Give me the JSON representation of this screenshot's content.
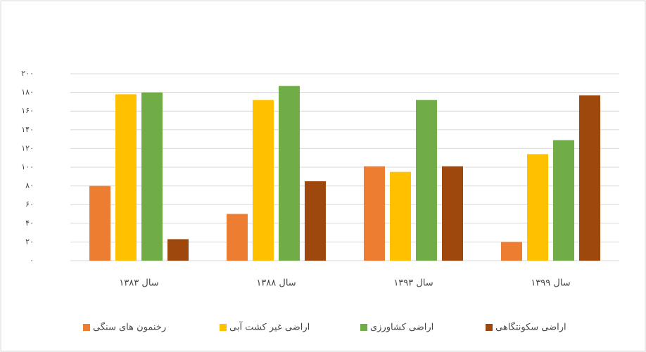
{
  "chart_data": {
    "type": "bar",
    "categories": [
      "سال ۱۳۸۳",
      "سال ۱۳۸۸",
      "سال ۱۳۹۳",
      "سال ۱۳۹۹"
    ],
    "series": [
      {
        "name": "رخنمون های سنگی",
        "color": "#ED7D31",
        "values": [
          80,
          50,
          101,
          20
        ]
      },
      {
        "name": "اراضی غیر کشت آبی",
        "color": "#FFC000",
        "values": [
          178,
          172,
          95,
          114
        ]
      },
      {
        "name": "اراضی کشاورزی",
        "color": "#70AD47",
        "values": [
          180,
          187,
          172,
          129
        ]
      },
      {
        "name": "اراضی سکونتگاهی",
        "color": "#9E480E",
        "values": [
          23,
          85,
          101,
          177
        ]
      }
    ],
    "ylim": [
      0,
      200
    ],
    "yticks": [
      {
        "value": 0,
        "label": "۰"
      },
      {
        "value": 20,
        "label": "۲۰"
      },
      {
        "value": 40,
        "label": "۴۰"
      },
      {
        "value": 60,
        "label": "۶۰"
      },
      {
        "value": 80,
        "label": "۸۰"
      },
      {
        "value": 100,
        "label": "۱۰۰"
      },
      {
        "value": 120,
        "label": "۱۲۰"
      },
      {
        "value": 140,
        "label": "۱۴۰"
      },
      {
        "value": 160,
        "label": "۱۶۰"
      },
      {
        "value": 180,
        "label": "۱۸۰"
      },
      {
        "value": 200,
        "label": "۲۰۰"
      }
    ],
    "grid": true,
    "legend": "bottom"
  }
}
